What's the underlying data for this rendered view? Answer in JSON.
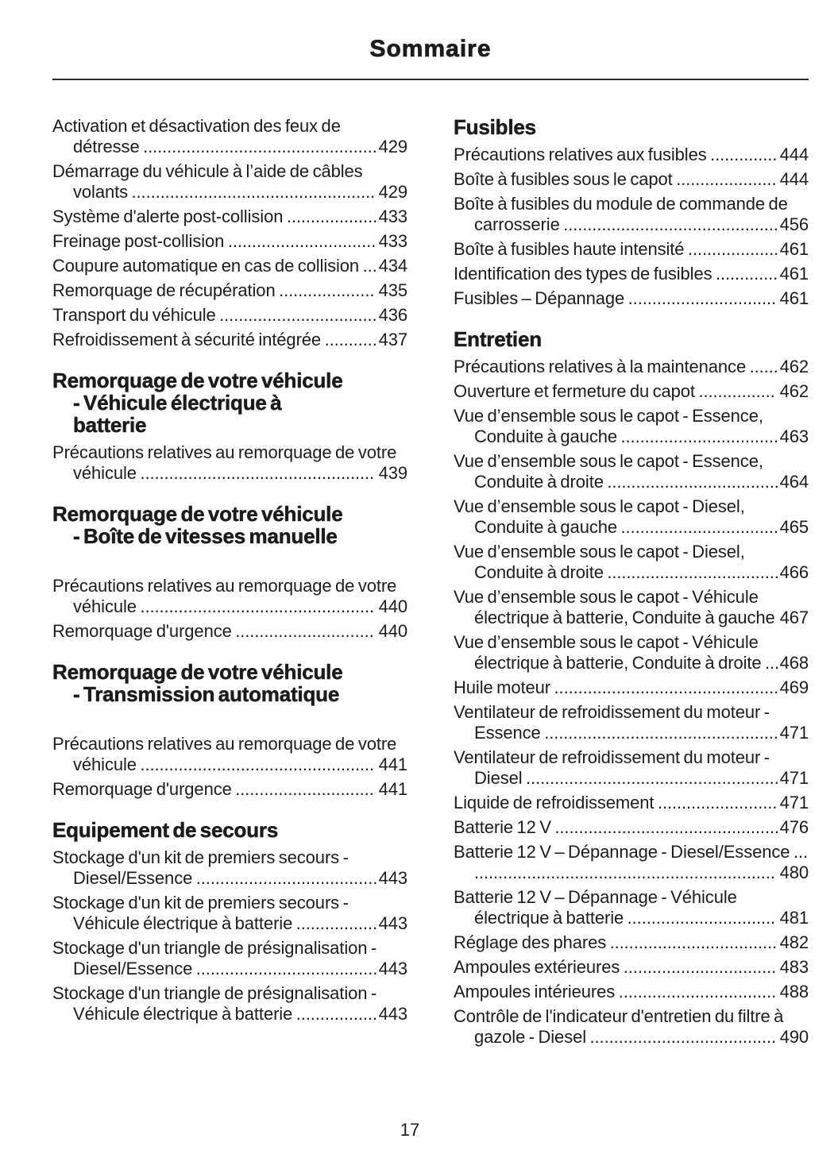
{
  "page": {
    "title": "Sommaire",
    "number": "17"
  },
  "toc": {
    "columns": [
      {
        "side": "left",
        "sections": [
          {
            "heading": "",
            "entries": [
              {
                "label": "Activation et désactivation des feux de détresse",
                "page": "429"
              },
              {
                "label": "Démarrage du véhicule à l’aide de câbles volants",
                "page": "429"
              },
              {
                "label": "Système d'alerte post-collision",
                "page": "433"
              },
              {
                "label": "Freinage post-collision",
                "page": "433"
              },
              {
                "label": "Coupure automatique en cas de collision",
                "page": "434"
              },
              {
                "label": "Remorquage de récupération",
                "page": "435"
              },
              {
                "label": "Transport du véhicule",
                "page": "436"
              },
              {
                "label": "Refroidissement à sécurité intégrée",
                "page": "437"
              }
            ]
          },
          {
            "heading": "Remorquage de votre véhicule\n- Véhicule électrique à\nbatterie",
            "entries": [
              {
                "label": "Précautions relatives au remorquage de votre véhicule",
                "page": "439"
              }
            ]
          },
          {
            "heading": "Remorquage de votre véhicule\n- Boîte de vitesses manuelle",
            "gap_after_heading": true,
            "entries": [
              {
                "label": "Précautions relatives au remorquage de votre véhicule",
                "page": "440"
              },
              {
                "label": "Remorquage d'urgence",
                "page": "440"
              }
            ]
          },
          {
            "heading": "Remorquage de votre véhicule\n- Transmission automatique",
            "gap_after_heading": true,
            "entries": [
              {
                "label": "Précautions relatives au remorquage de votre véhicule",
                "page": "441"
              },
              {
                "label": "Remorquage d'urgence",
                "page": "441"
              }
            ]
          },
          {
            "heading": "Equipement de secours",
            "entries": [
              {
                "label": "Stockage d'un kit de premiers secours - Diesel/Essence",
                "page": "443"
              },
              {
                "label": "Stockage d'un kit de premiers secours - Véhicule électrique à batterie",
                "page": "443"
              },
              {
                "label": "Stockage d'un triangle de présignalisation - Diesel/Essence",
                "page": "443"
              },
              {
                "label": "Stockage d'un triangle de présignalisation - Véhicule électrique à batterie",
                "page": "443"
              }
            ]
          }
        ]
      },
      {
        "side": "right",
        "sections": [
          {
            "heading": "Fusibles",
            "entries": [
              {
                "label": "Précautions relatives aux fusibles",
                "page": "444"
              },
              {
                "label": "Boîte à fusibles sous le capot",
                "page": "444"
              },
              {
                "label": "Boîte à fusibles du module de commande de carrosserie",
                "page": "456"
              },
              {
                "label": "Boîte à fusibles haute intensité",
                "page": "461"
              },
              {
                "label": "Identification des types de fusibles",
                "page": "461"
              },
              {
                "label": "Fusibles – Dépannage",
                "page": "461"
              }
            ]
          },
          {
            "heading": "Entretien",
            "entries": [
              {
                "label": "Précautions relatives à la maintenance",
                "page": "462"
              },
              {
                "label": "Ouverture et fermeture du capot",
                "page": "462"
              },
              {
                "label": "Vue d’ensemble sous le capot - Essence, Conduite à gauche",
                "page": "463"
              },
              {
                "label": "Vue d’ensemble sous le capot - Essence, Conduite à droite",
                "page": "464"
              },
              {
                "label": "Vue d’ensemble sous le capot - Diesel, Conduite à gauche",
                "page": "465"
              },
              {
                "label": "Vue d’ensemble sous le capot - Diesel, Conduite à droite",
                "page": "466"
              },
              {
                "label": "Vue d’ensemble sous le capot - Véhicule électrique à batterie, Conduite à gauche",
                "page": "467"
              },
              {
                "label": "Vue d’ensemble sous le capot - Véhicule électrique à batterie, Conduite à droite",
                "page": "468"
              },
              {
                "label": "Huile moteur",
                "page": "469"
              },
              {
                "label": "Ventilateur de refroidissement du moteur - Essence",
                "page": "471"
              },
              {
                "label": "Ventilateur de refroidissement du moteur - Diesel",
                "page": "471"
              },
              {
                "label": "Liquide de refroidissement",
                "page": "471"
              },
              {
                "label": "Batterie 12 V",
                "page": "476"
              },
              {
                "label": "Batterie 12 V – Dépannage - Diesel/Essence",
                "page": "480"
              },
              {
                "label": "Batterie 12 V – Dépannage - Véhicule électrique à batterie",
                "page": "481"
              },
              {
                "label": "Réglage des phares",
                "page": "482"
              },
              {
                "label": "Ampoules extérieures",
                "page": "483"
              },
              {
                "label": "Ampoules intérieures",
                "page": "488"
              },
              {
                "label": "Contrôle de l'indicateur d'entretien du filtre à gazole - Diesel",
                "page": "490"
              }
            ]
          }
        ]
      }
    ]
  }
}
